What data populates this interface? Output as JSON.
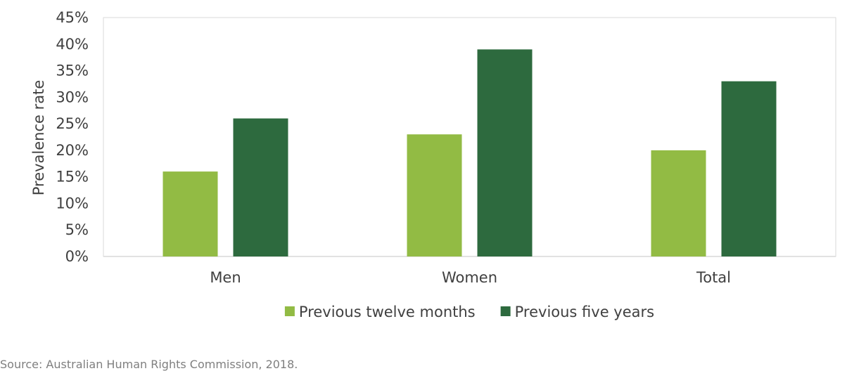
{
  "chart_data": {
    "type": "bar",
    "categories": [
      "Men",
      "Women",
      "Total"
    ],
    "series": [
      {
        "name": "Previous twelve months",
        "values": [
          16,
          23,
          20
        ],
        "color": "#92bb44"
      },
      {
        "name": "Previous five years",
        "values": [
          26,
          39,
          33
        ],
        "color": "#2d6a3e"
      }
    ],
    "ylabel": "Prevalence rate",
    "xlabel": "",
    "ylim": [
      0,
      45
    ],
    "yticks": [
      0,
      5,
      10,
      15,
      20,
      25,
      30,
      35,
      40,
      45
    ],
    "ytick_labels": [
      "0%",
      "5%",
      "10%",
      "15%",
      "20%",
      "25%",
      "30%",
      "35%",
      "40%",
      "45%"
    ],
    "legend_position": "bottom",
    "grid": false
  },
  "source": "Source: Australian Human Rights Commission, 2018."
}
